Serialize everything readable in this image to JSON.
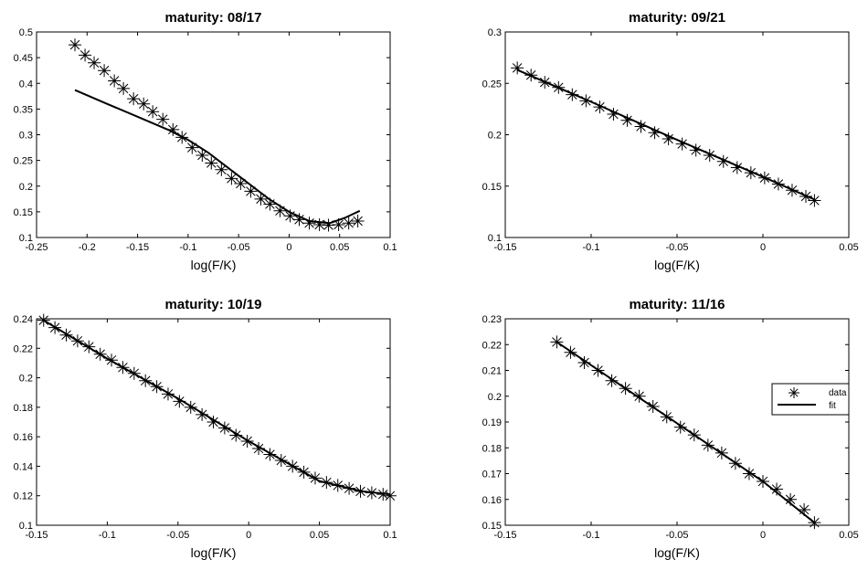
{
  "chart_data": [
    {
      "type": "scatter",
      "title": "maturity: 08/17",
      "xlabel": "log(F/K)",
      "ylabel": "",
      "xlim": [
        -0.25,
        0.1
      ],
      "ylim": [
        0.1,
        0.5
      ],
      "xticks": [
        "-0.25",
        "-0.2",
        "-0.15",
        "-0.1",
        "-0.05",
        "0",
        "0.05",
        "0.1"
      ],
      "yticks": [
        "0.1",
        "0.15",
        "0.2",
        "0.25",
        "0.3",
        "0.35",
        "0.4",
        "0.45",
        "0.5"
      ],
      "grid": false,
      "series": [
        {
          "name": "data",
          "marker": "asterisk",
          "x": [
            -0.212,
            -0.202,
            -0.193,
            -0.183,
            -0.173,
            -0.164,
            -0.154,
            -0.144,
            -0.135,
            -0.125,
            -0.115,
            -0.106,
            -0.096,
            -0.086,
            -0.077,
            -0.067,
            -0.057,
            -0.048,
            -0.038,
            -0.028,
            -0.019,
            -0.009,
            0.001,
            0.01,
            0.02,
            0.03,
            0.039,
            0.049,
            0.059,
            0.068
          ],
          "y": [
            0.475,
            0.455,
            0.44,
            0.425,
            0.405,
            0.39,
            0.37,
            0.36,
            0.345,
            0.33,
            0.31,
            0.295,
            0.275,
            0.26,
            0.245,
            0.232,
            0.215,
            0.205,
            0.19,
            0.175,
            0.165,
            0.152,
            0.142,
            0.135,
            0.128,
            0.125,
            0.124,
            0.125,
            0.128,
            0.132
          ]
        },
        {
          "name": "fit",
          "marker": "line",
          "x": [
            -0.212,
            -0.18,
            -0.15,
            -0.12,
            -0.1,
            -0.08,
            -0.06,
            -0.04,
            -0.02,
            0.0,
            0.02,
            0.04,
            0.055,
            0.07
          ],
          "y": [
            0.387,
            0.36,
            0.335,
            0.31,
            0.29,
            0.265,
            0.235,
            0.205,
            0.175,
            0.15,
            0.132,
            0.128,
            0.138,
            0.152
          ]
        }
      ]
    },
    {
      "type": "scatter",
      "title": "maturity: 09/21",
      "xlabel": "log(F/K)",
      "ylabel": "",
      "xlim": [
        -0.15,
        0.05
      ],
      "ylim": [
        0.1,
        0.3
      ],
      "xticks": [
        "-0.15",
        "-0.1",
        "-0.05",
        "0",
        "0.05"
      ],
      "yticks": [
        "0.1",
        "0.15",
        "0.2",
        "0.25",
        "0.3"
      ],
      "grid": false,
      "series": [
        {
          "name": "data",
          "marker": "asterisk",
          "x": [
            -0.143,
            -0.135,
            -0.127,
            -0.119,
            -0.111,
            -0.103,
            -0.095,
            -0.087,
            -0.079,
            -0.071,
            -0.063,
            -0.055,
            -0.047,
            -0.039,
            -0.031,
            -0.023,
            -0.015,
            -0.007,
            0.001,
            0.009,
            0.017,
            0.025,
            0.03
          ],
          "y": [
            0.265,
            0.258,
            0.251,
            0.246,
            0.239,
            0.233,
            0.227,
            0.22,
            0.214,
            0.208,
            0.202,
            0.196,
            0.191,
            0.185,
            0.18,
            0.174,
            0.168,
            0.163,
            0.158,
            0.152,
            0.146,
            0.14,
            0.136
          ]
        },
        {
          "name": "fit",
          "marker": "line",
          "x": [
            -0.143,
            -0.1,
            -0.05,
            0.0,
            0.03
          ],
          "y": [
            0.263,
            0.232,
            0.195,
            0.159,
            0.137
          ]
        }
      ]
    },
    {
      "type": "scatter",
      "title": "maturity: 10/19",
      "xlabel": "log(F/K)",
      "ylabel": "",
      "xlim": [
        -0.15,
        0.1
      ],
      "ylim": [
        0.1,
        0.24
      ],
      "xticks": [
        "-0.15",
        "-0.1",
        "-0.05",
        "0",
        "0.05",
        "0.1"
      ],
      "yticks": [
        "0.1",
        "0.12",
        "0.14",
        "0.16",
        "0.18",
        "0.2",
        "0.22",
        "0.24"
      ],
      "grid": false,
      "series": [
        {
          "name": "data",
          "marker": "asterisk",
          "x": [
            -0.145,
            -0.137,
            -0.129,
            -0.121,
            -0.113,
            -0.105,
            -0.097,
            -0.089,
            -0.081,
            -0.073,
            -0.065,
            -0.057,
            -0.049,
            -0.041,
            -0.033,
            -0.025,
            -0.017,
            -0.009,
            -0.001,
            0.007,
            0.015,
            0.023,
            0.031,
            0.039,
            0.047,
            0.055,
            0.063,
            0.071,
            0.079,
            0.087,
            0.095,
            0.1
          ],
          "y": [
            0.239,
            0.234,
            0.229,
            0.225,
            0.221,
            0.216,
            0.212,
            0.207,
            0.203,
            0.198,
            0.194,
            0.189,
            0.184,
            0.18,
            0.175,
            0.17,
            0.166,
            0.161,
            0.157,
            0.152,
            0.148,
            0.144,
            0.14,
            0.136,
            0.132,
            0.129,
            0.127,
            0.125,
            0.123,
            0.122,
            0.121,
            0.12
          ]
        },
        {
          "name": "fit",
          "marker": "line",
          "x": [
            -0.145,
            -0.1,
            -0.05,
            0.0,
            0.05,
            0.08,
            0.1
          ],
          "y": [
            0.239,
            0.213,
            0.186,
            0.157,
            0.13,
            0.123,
            0.121
          ]
        }
      ]
    },
    {
      "type": "scatter",
      "title": "maturity: 11/16",
      "xlabel": "log(F/K)",
      "ylabel": "",
      "xlim": [
        -0.15,
        0.05
      ],
      "ylim": [
        0.15,
        0.23
      ],
      "xticks": [
        "-0.15",
        "-0.1",
        "-0.05",
        "0",
        "0.05"
      ],
      "yticks": [
        "0.15",
        "0.16",
        "0.17",
        "0.18",
        "0.19",
        "0.2",
        "0.21",
        "0.22",
        "0.23"
      ],
      "grid": false,
      "legend": {
        "placement": "right",
        "entries": [
          "data",
          "fit"
        ]
      },
      "series": [
        {
          "name": "data",
          "marker": "asterisk",
          "x": [
            -0.12,
            -0.112,
            -0.104,
            -0.096,
            -0.088,
            -0.08,
            -0.072,
            -0.064,
            -0.056,
            -0.048,
            -0.04,
            -0.032,
            -0.024,
            -0.016,
            -0.008,
            0.0,
            0.008,
            0.016,
            0.024,
            0.03
          ],
          "y": [
            0.221,
            0.217,
            0.213,
            0.21,
            0.206,
            0.203,
            0.2,
            0.196,
            0.192,
            0.188,
            0.185,
            0.181,
            0.178,
            0.174,
            0.17,
            0.167,
            0.164,
            0.16,
            0.156,
            0.151
          ]
        },
        {
          "name": "fit",
          "marker": "line",
          "x": [
            -0.12,
            -0.08,
            -0.04,
            0.0,
            0.03
          ],
          "y": [
            0.221,
            0.203,
            0.185,
            0.167,
            0.151
          ]
        }
      ]
    }
  ]
}
